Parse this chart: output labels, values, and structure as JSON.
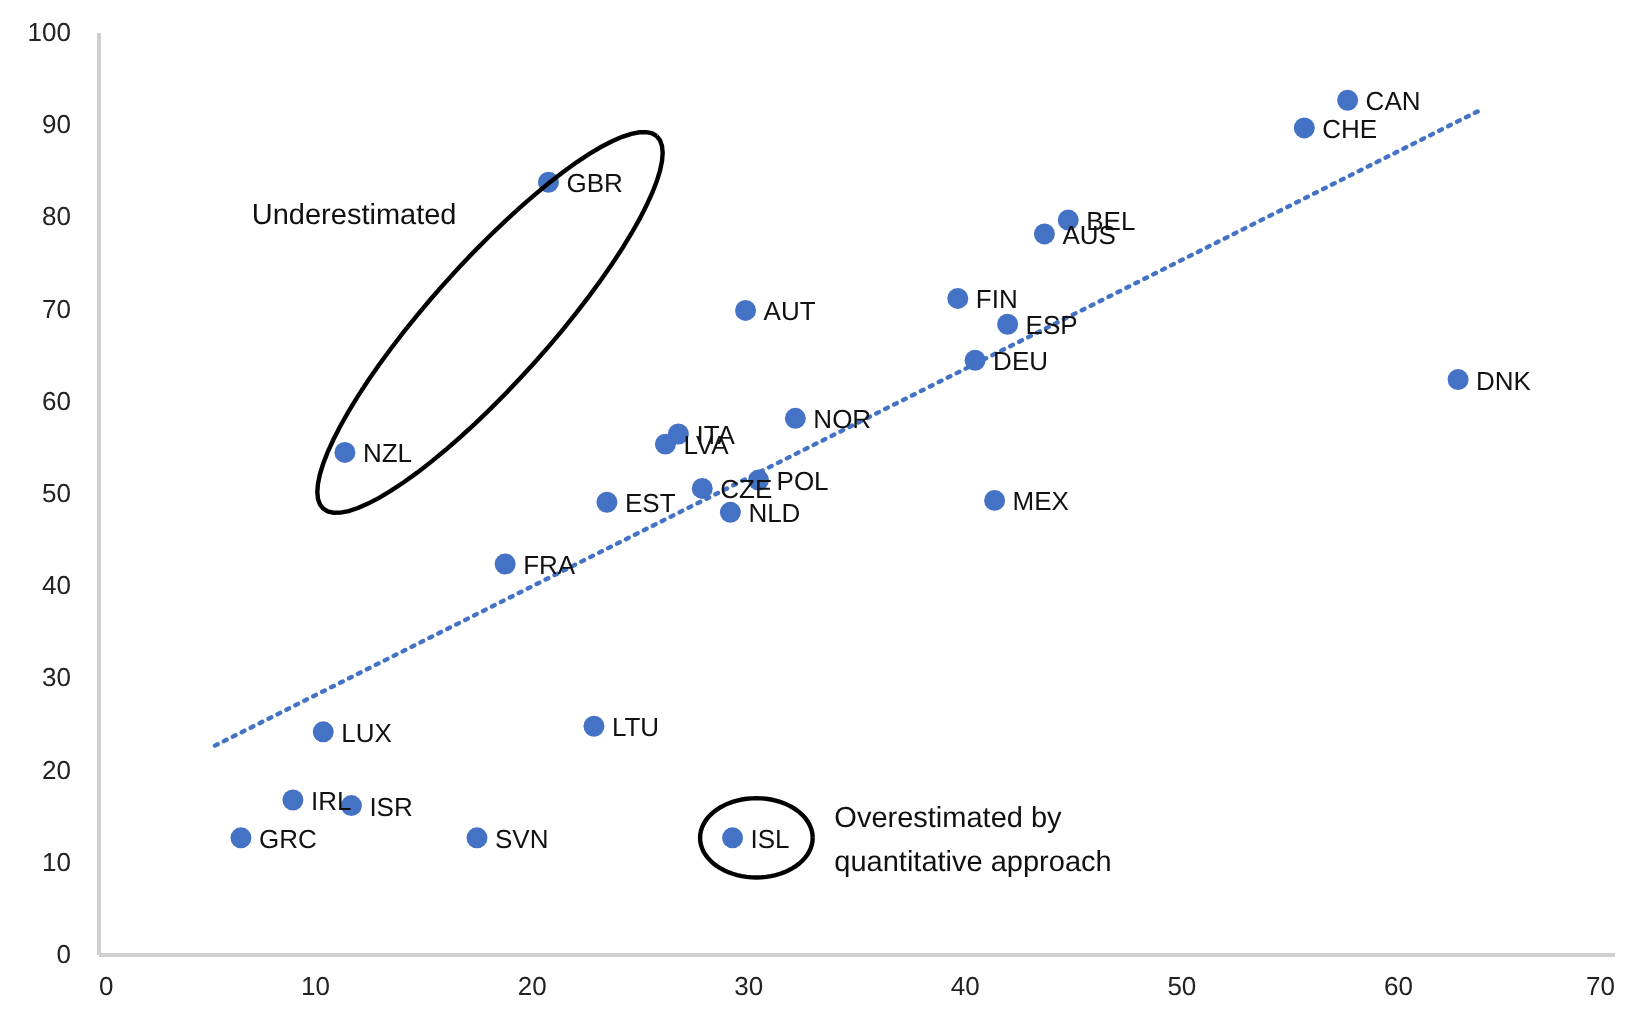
{
  "chart_data": {
    "type": "scatter",
    "xlim": [
      0,
      70
    ],
    "xticks": [
      0,
      10,
      20,
      30,
      40,
      50,
      60,
      70
    ],
    "ylim": [
      0,
      100
    ],
    "yticks": [
      0,
      10,
      20,
      30,
      40,
      50,
      60,
      70,
      80,
      90,
      100
    ],
    "grid": false,
    "marker": "circle",
    "series": [
      {
        "color": "#4472c4",
        "x": [
          20.8,
          11.4,
          29.9,
          26.8,
          26.2,
          32.2,
          23.5,
          27.9,
          30.5,
          29.2,
          18.8,
          10.4,
          22.9,
          9.0,
          11.7,
          6.6,
          17.5,
          29.3,
          41.4,
          39.7,
          42.0,
          40.5,
          43.7,
          44.8,
          55.7,
          57.7,
          62.8
        ],
        "values": [
          83.7,
          54.4,
          69.8,
          56.4,
          55.3,
          58.1,
          49.0,
          50.5,
          51.4,
          47.9,
          42.3,
          24.1,
          24.7,
          16.7,
          16.1,
          12.6,
          12.6,
          12.6,
          49.2,
          71.1,
          68.3,
          64.4,
          78.1,
          79.6,
          89.6,
          92.6,
          62.3
        ]
      },
      {
        "type": "line",
        "color": "#4472c4",
        "line_style": "dotted",
        "marker": "none",
        "x": [
          5.4,
          63.8
        ],
        "values": [
          22.6,
          91.5
        ]
      }
    ],
    "annotations": [
      {
        "text": "GBR",
        "x": 20.8,
        "y": 83.7
      },
      {
        "text": "NZL",
        "x": 11.4,
        "y": 54.4
      },
      {
        "text": "AUT",
        "x": 29.9,
        "y": 69.8
      },
      {
        "text": "ITA",
        "x": 26.8,
        "y": 56.4
      },
      {
        "text": "LVA",
        "x": 26.2,
        "y": 55.3
      },
      {
        "text": "NOR",
        "x": 32.2,
        "y": 58.1
      },
      {
        "text": "EST",
        "x": 23.5,
        "y": 49.0
      },
      {
        "text": "CZE",
        "x": 27.9,
        "y": 50.5
      },
      {
        "text": "POL",
        "x": 30.5,
        "y": 51.4
      },
      {
        "text": "NLD",
        "x": 29.2,
        "y": 47.9
      },
      {
        "text": "FRA",
        "x": 18.8,
        "y": 42.3
      },
      {
        "text": "LUX",
        "x": 10.4,
        "y": 24.1
      },
      {
        "text": "LTU",
        "x": 22.9,
        "y": 24.7
      },
      {
        "text": "IRL",
        "x": 9.0,
        "y": 16.7
      },
      {
        "text": "ISR",
        "x": 11.7,
        "y": 16.1
      },
      {
        "text": "GRC",
        "x": 6.6,
        "y": 12.6
      },
      {
        "text": "SVN",
        "x": 17.5,
        "y": 12.6
      },
      {
        "text": "ISL",
        "x": 29.3,
        "y": 12.6
      },
      {
        "text": "MEX",
        "x": 41.4,
        "y": 49.2
      },
      {
        "text": "FIN",
        "x": 39.7,
        "y": 71.1
      },
      {
        "text": "ESP",
        "x": 42.0,
        "y": 68.3
      },
      {
        "text": "DEU",
        "x": 40.5,
        "y": 64.4
      },
      {
        "text": "AUS",
        "x": 43.7,
        "y": 78.1
      },
      {
        "text": "BEL",
        "x": 44.8,
        "y": 79.6
      },
      {
        "text": "CHE",
        "x": 55.7,
        "y": 89.6
      },
      {
        "text": "CAN",
        "x": 57.7,
        "y": 92.6
      },
      {
        "text": "DNK",
        "x": 62.8,
        "y": 62.3
      },
      "Underestimated",
      "Overestimated by\nquantitative  approach"
    ]
  }
}
